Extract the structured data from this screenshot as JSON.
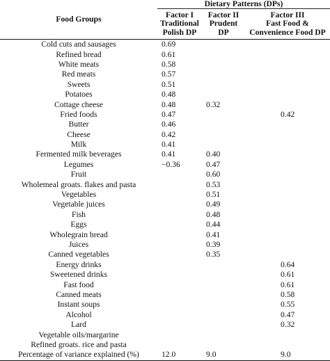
{
  "header": {
    "food_groups": "Food Groups",
    "dietary_patterns": "Dietary Patterns (DPs)",
    "factor1": {
      "line1": "Factor I",
      "line2": "Traditional",
      "line3": "Polish DP"
    },
    "factor2": {
      "line1": "Factor II",
      "line2": "Prudent",
      "line3": "DP"
    },
    "factor3": {
      "line1": "Factor III",
      "line2": "Fast Food &",
      "line3": "Convenience Food DP"
    }
  },
  "rows": [
    {
      "name": "Cold cuts and sausages",
      "f1": "0.69",
      "f2": "",
      "f3": ""
    },
    {
      "name": "Refined bread",
      "f1": "0.61",
      "f2": "",
      "f3": ""
    },
    {
      "name": "White meats",
      "f1": "0.58",
      "f2": "",
      "f3": ""
    },
    {
      "name": "Red meats",
      "f1": "0.57",
      "f2": "",
      "f3": ""
    },
    {
      "name": "Sweets",
      "f1": "0.51",
      "f2": "",
      "f3": ""
    },
    {
      "name": "Potatoes",
      "f1": "0.48",
      "f2": "",
      "f3": ""
    },
    {
      "name": "Cottage cheese",
      "f1": "0.48",
      "f2": "0.32",
      "f3": ""
    },
    {
      "name": "Fried foods",
      "f1": "0.47",
      "f2": "",
      "f3": "0.42"
    },
    {
      "name": "Butter",
      "f1": "0.46",
      "f2": "",
      "f3": ""
    },
    {
      "name": "Cheese",
      "f1": "0.42",
      "f2": "",
      "f3": ""
    },
    {
      "name": "Milk",
      "f1": "0.41",
      "f2": "",
      "f3": ""
    },
    {
      "name": "Fermented milk beverages",
      "f1": "0.41",
      "f2": "0.40",
      "f3": ""
    },
    {
      "name": "Legumes",
      "f1": "−0.36",
      "f2": "0.47",
      "f3": ""
    },
    {
      "name": "Fruit",
      "f1": "",
      "f2": "0.60",
      "f3": ""
    },
    {
      "name": "Wholemeal groats. flakes and pasta",
      "f1": "",
      "f2": "0.53",
      "f3": ""
    },
    {
      "name": "Vegetables",
      "f1": "",
      "f2": "0.51",
      "f3": ""
    },
    {
      "name": "Vegetable juices",
      "f1": "",
      "f2": "0.49",
      "f3": ""
    },
    {
      "name": "Fish",
      "f1": "",
      "f2": "0.48",
      "f3": ""
    },
    {
      "name": "Eggs",
      "f1": "",
      "f2": "0.44",
      "f3": ""
    },
    {
      "name": "Wholegrain bread",
      "f1": "",
      "f2": "0.41",
      "f3": ""
    },
    {
      "name": "Juices",
      "f1": "",
      "f2": "0.39",
      "f3": ""
    },
    {
      "name": "Canned vegetables",
      "f1": "",
      "f2": "0.35",
      "f3": ""
    },
    {
      "name": "Energy drinks",
      "f1": "",
      "f2": "",
      "f3": "0.64"
    },
    {
      "name": "Sweetened drinks",
      "f1": "",
      "f2": "",
      "f3": "0.61"
    },
    {
      "name": "Fast food",
      "f1": "",
      "f2": "",
      "f3": "0.61"
    },
    {
      "name": "Canned meats",
      "f1": "",
      "f2": "",
      "f3": "0.58"
    },
    {
      "name": "Instant soups",
      "f1": "",
      "f2": "",
      "f3": "0.55"
    },
    {
      "name": "Alcohol",
      "f1": "",
      "f2": "",
      "f3": "0.47"
    },
    {
      "name": "Lard",
      "f1": "",
      "f2": "",
      "f3": "0.32"
    },
    {
      "name": "Vegetable oils/margarine",
      "f1": "",
      "f2": "",
      "f3": ""
    },
    {
      "name": "Refined groats. rice and pasta",
      "f1": "",
      "f2": "",
      "f3": ""
    },
    {
      "name": "Percentage of variance explained (%)",
      "f1": "12.0",
      "f2": "9.0",
      "f3": "9.0"
    }
  ]
}
